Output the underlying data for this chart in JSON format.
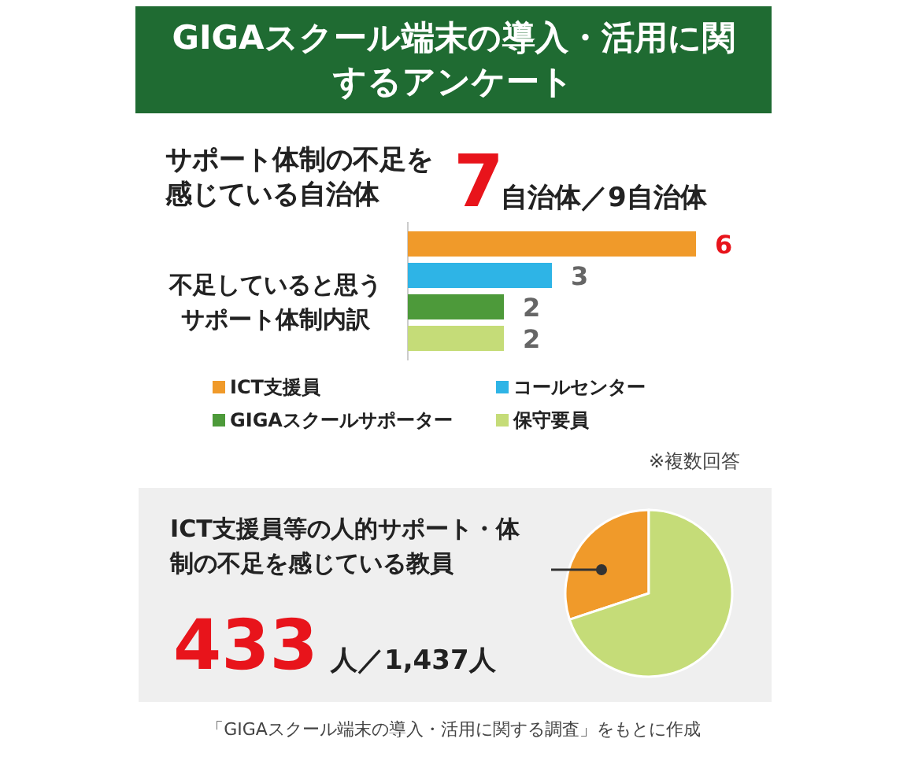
{
  "chart_data": [
    {
      "type": "other",
      "title": "GIGAスクール端末の導入・活用に関するアンケート",
      "annotations": [
        "サポート体制の不足を感じている自治体",
        "7",
        "自治体／9自治体"
      ]
    },
    {
      "type": "bar",
      "orientation": "horizontal",
      "title": "不足していると思うサポート体制内訳",
      "categories": [
        null,
        null,
        null,
        null
      ],
      "stacked": true,
      "data_labels": true,
      "legend": "bottom",
      "annotations": [
        "※複数回答"
      ],
      "series": [
        {
          "name": "ICT支援員",
          "color": "#f09a2a",
          "values": [
            6,
            null,
            null,
            null
          ]
        },
        {
          "name": "コールセンター",
          "color": "#2eb4e6",
          "values": [
            null,
            3,
            null,
            null
          ]
        },
        {
          "name": "GIGAスクールサポーター",
          "color": "#4d9a3a",
          "values": [
            null,
            null,
            2,
            null
          ]
        },
        {
          "name": "保守要員",
          "color": "#c5dc78",
          "values": [
            null,
            null,
            null,
            2
          ]
        }
      ]
    },
    {
      "type": "pie",
      "title": "ICT支援員等の人的サポート・体制の不足を感じている教員",
      "categories": [
        null,
        null
      ],
      "values": [
        30.1,
        69.9
      ],
      "colors": [
        "#f09a2a",
        "#c5dc78"
      ],
      "annotations": [
        "433",
        "人／1,437人",
        "「GIGAスクール端末の導入・活用に関する調査」をもとに作成"
      ]
    }
  ]
}
